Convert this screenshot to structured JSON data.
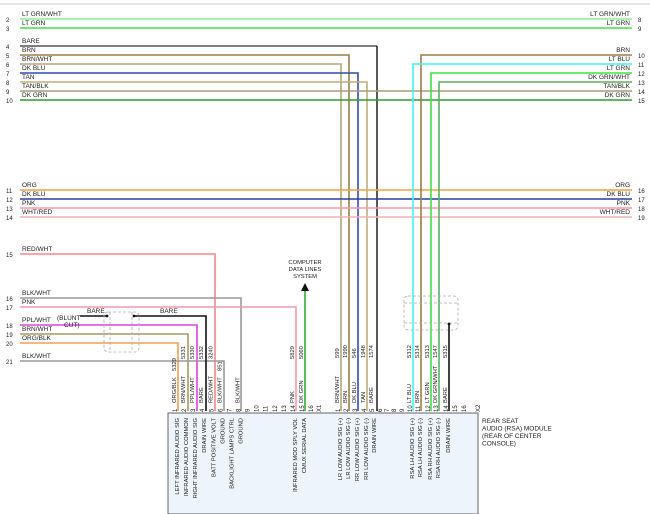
{
  "diagram": {
    "left_rows": [
      {
        "num": "2",
        "label": "LT GRN/WHT",
        "color": "#8ef08e"
      },
      {
        "num": "3",
        "label": "LT GRN",
        "color": "#44e044"
      },
      {
        "num": "4",
        "label": "BARE",
        "color": "#555555"
      },
      {
        "num": "5",
        "label": "BRN",
        "color": "#9c7f45"
      },
      {
        "num": "6",
        "label": "BRN/WHT",
        "color": "#b8a37a"
      },
      {
        "num": "7",
        "label": "DK BLU",
        "color": "#2f4fb0"
      },
      {
        "num": "8",
        "label": "TAN",
        "color": "#c2ad78"
      },
      {
        "num": "9",
        "label": "TAN/BLK",
        "color": "#a89c7c"
      },
      {
        "num": "10",
        "label": "DK GRN",
        "color": "#2f9e2f"
      },
      {
        "num": "11",
        "label": "ORG",
        "color": "#f4a040"
      },
      {
        "num": "12",
        "label": "DK BLU",
        "color": "#2a3fa0"
      },
      {
        "num": "13",
        "label": "PNK",
        "color": "#f29aae"
      },
      {
        "num": "14",
        "label": "WHT/RED",
        "color": "#f2b4b4"
      },
      {
        "num": "15",
        "label": "RED/WHT",
        "color": "#f28888"
      },
      {
        "num": "16",
        "label": "BLK/WHT",
        "color": "#9a9a9a"
      },
      {
        "num": "17",
        "label": "PNK",
        "color": "#f29aae"
      },
      {
        "num": "18",
        "label": "PPL/WHT",
        "color": "#e040e0"
      },
      {
        "num": "19",
        "label": "BRN/WHT",
        "color": "#a89a5e"
      },
      {
        "num": "20",
        "label": "ORG/BLK",
        "color": "#eea050"
      },
      {
        "num": "21",
        "label": "BLK/WHT",
        "color": "#9a9a9a"
      }
    ],
    "right_rows": [
      {
        "num": "8",
        "label": "LT GRN/WHT"
      },
      {
        "num": "9",
        "label": "LT GRN"
      },
      {
        "num": "10",
        "label": "BRN",
        "color": "#9c7f45"
      },
      {
        "num": "11",
        "label": "LT BLU",
        "color": "#40f4f4"
      },
      {
        "num": "12",
        "label": "LT GRN",
        "color": "#44e044"
      },
      {
        "num": "13",
        "label": "DK GRN/WHT",
        "color": "#5fae5f"
      },
      {
        "num": "14",
        "label": "TAN/BLK"
      },
      {
        "num": "15",
        "label": "DK GRN"
      },
      {
        "num": "16",
        "label": "ORG"
      },
      {
        "num": "17",
        "label": "DK BLU"
      },
      {
        "num": "18",
        "label": "PNK"
      },
      {
        "num": "19",
        "label": "WHT/RED"
      }
    ],
    "shield": {
      "bare_left": "BARE",
      "bare_right": "BARE",
      "blunt_cut_1": "(BLUNT",
      "blunt_cut_2": "CUT)",
      "drain_color": "#111111"
    },
    "computer_label": [
      "COMPUTER",
      "DATA LINES",
      "SYSTEM"
    ],
    "dk_grn_color": "#2fae2f",
    "module_label": [
      "REAR SEAT",
      "AUDIO (RSA) MODULE",
      "(REAR OF CENTER",
      "CONSOLE)"
    ],
    "connector_fill": "#eef4fb",
    "connector_a": {
      "cavity": "X1",
      "pins": [
        {
          "num": "1",
          "wire": "ORG/BLK",
          "circuit": "5329",
          "function": "LEFT INFRARED AUDIO SIG"
        },
        {
          "num": "2",
          "wire": "BRN/WHT",
          "circuit": "5331",
          "function": "INFRARED AUDIO COMMON"
        },
        {
          "num": "3",
          "wire": "PPL/WHT",
          "circuit": "5330",
          "function": "RIGHT INFRARED AUDIO SIG"
        },
        {
          "num": "4",
          "wire": "BARE",
          "circuit": "5332",
          "function": "DRAIN WIRE"
        },
        {
          "num": "5",
          "wire": "RED/WHT",
          "circuit": "3240",
          "function": "BATT POSITIVE VOLT"
        },
        {
          "num": "6",
          "wire": "BLK/WHT",
          "circuit": "851",
          "function": "GROUND"
        },
        {
          "num": "7",
          "function": "BACKLIGHT LAMPS CTRL"
        },
        {
          "num": "8",
          "wire": "BLK/WHT",
          "function": "GROUND"
        },
        {
          "num": "9"
        },
        {
          "num": "10"
        },
        {
          "num": "11"
        },
        {
          "num": "12"
        },
        {
          "num": "13"
        },
        {
          "num": "14",
          "wire": "PNK",
          "circuit": "5829",
          "function": "INFRARED MOD SPLY VOL"
        },
        {
          "num": "15",
          "wire": "DK GRN",
          "circuit": "5060",
          "function": "CMUX SERIAL DATA"
        },
        {
          "num": "16"
        }
      ]
    },
    "connector_b": {
      "cavity": "X2",
      "pins": [
        {
          "num": "1",
          "wire": "BRN/WHT",
          "circuit": "599",
          "function": "LR LOW AUDIO SIG (+)"
        },
        {
          "num": "2",
          "wire": "BRN",
          "circuit": "1990",
          "function": "LR LOW AUDIO SIG (-)"
        },
        {
          "num": "3",
          "wire": "DK BLU",
          "circuit": "546",
          "function": "RR LOW AUDIO SIG (+)"
        },
        {
          "num": "4",
          "wire": "TAN",
          "circuit": "1948",
          "function": "RR LOW AUDIO SIG (-)"
        },
        {
          "num": "5",
          "wire": "BARE",
          "circuit": "1574",
          "function": "DRAIN WIRE"
        },
        {
          "num": "6"
        },
        {
          "num": "7"
        },
        {
          "num": "8"
        },
        {
          "num": "9"
        },
        {
          "num": "10",
          "wire": "LT BLU",
          "circuit": "5312",
          "function": "RSA LH AUDIO SIG (+)"
        },
        {
          "num": "11",
          "wire": "BRN",
          "circuit": "5314",
          "function": "RSA LH AUDIO SIG (-)"
        },
        {
          "num": "12",
          "wire": "LT GRN",
          "circuit": "5313",
          "function": "RSA RH AUDIO SIG (+)"
        },
        {
          "num": "13",
          "wire": "DK GRN/WHT",
          "circuit": "1547",
          "function": "RSA RH AUDIO SIG (-)"
        },
        {
          "num": "14",
          "wire": "BARE",
          "circuit": "5315",
          "function": "DRAIN WIRE"
        },
        {
          "num": "15"
        },
        {
          "num": "16"
        }
      ]
    }
  }
}
